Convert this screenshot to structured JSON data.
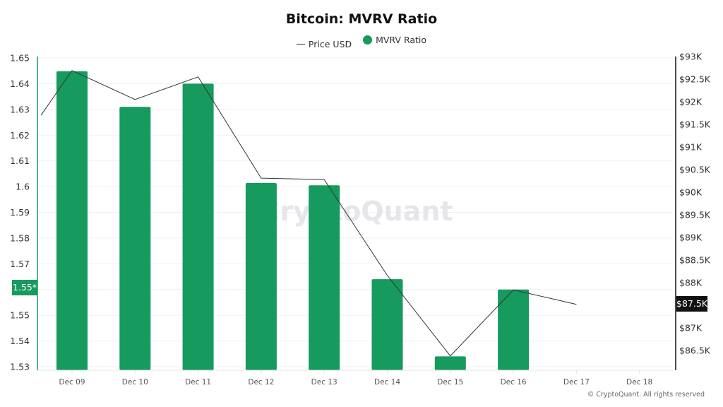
{
  "header": {
    "title": "Bitcoin: MVRV Ratio"
  },
  "legend": [
    {
      "label": "Price USD",
      "type": "line",
      "color": "#333333"
    },
    {
      "label": "MVRV Ratio",
      "type": "dot",
      "color": "#169a5e"
    }
  ],
  "watermark": "CryptoQuant",
  "copyright": "© CryptoQuant. All rights reserved",
  "left_axis": {
    "ticks": [
      "1.65",
      "1.64",
      "1.63",
      "1.62",
      "1.61",
      "1.6",
      "1.59",
      "1.58",
      "1.57",
      "1.55",
      "1.54",
      "1.53"
    ],
    "current_badge": "1.55*"
  },
  "right_axis": {
    "ticks": [
      "$93K",
      "$92.5K",
      "$92K",
      "$91.5K",
      "$91K",
      "$90.5K",
      "$90K",
      "$89.5K",
      "$89K",
      "$88.5K",
      "$88K",
      "$87K",
      "$86.5K"
    ],
    "current_badge": "$87.5K"
  },
  "x_axis": {
    "ticks": [
      "Dec 09",
      "Dec 10",
      "Dec 11",
      "Dec 12",
      "Dec 13",
      "Dec 14",
      "Dec 15",
      "Dec 16",
      "Dec 17",
      "Dec 18"
    ]
  },
  "colors": {
    "bar": "#169a5e",
    "line": "#333333",
    "left_axis_line": "#169a5e",
    "right_axis_line": "#111111"
  },
  "chart_data": {
    "type": "bar",
    "title": "Bitcoin: MVRV Ratio",
    "xlabel": "",
    "ylabel": "MVRV Ratio",
    "y2label": "Price USD",
    "categories": [
      "Dec 09",
      "Dec 10",
      "Dec 11",
      "Dec 12",
      "Dec 13",
      "Dec 14",
      "Dec 15",
      "Dec 16",
      "Dec 17",
      "Dec 18"
    ],
    "series": [
      {
        "name": "MVRV Ratio",
        "type": "bar",
        "axis": "left",
        "values": [
          1.6448,
          1.631,
          1.64,
          1.6014,
          1.6005,
          1.564,
          1.534,
          1.56,
          null,
          null
        ]
      },
      {
        "name": "Price USD",
        "type": "line",
        "axis": "right",
        "values": [
          92690,
          92050,
          92550,
          90310,
          90280,
          88160,
          86380,
          87840,
          87520,
          null
        ],
        "leading_point": {
          "x": "Dec 08 (partial)",
          "value": 91700
        }
      }
    ],
    "ylim": [
      1.53,
      1.65
    ],
    "y2lim": [
      86500,
      93000
    ],
    "current_values": {
      "MVRV Ratio": "1.55*",
      "Price USD": "$87.5K"
    },
    "legend_position": "top",
    "grid": true
  }
}
